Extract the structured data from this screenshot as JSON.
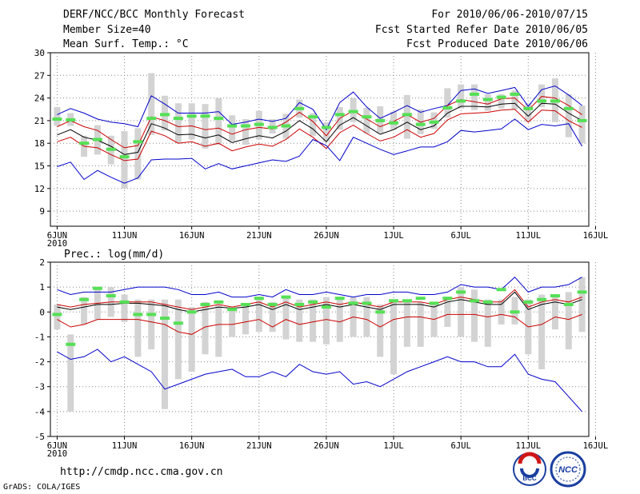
{
  "header": {
    "title": "DERF/NCC/BCC Monthly Forecast",
    "member_size": "Member Size=40",
    "variable": "Mean Surf. Temp.: °C",
    "forecast_period": "For 2010/06/06-2010/07/15",
    "started_refer_date": "Fcst Started Refer Date 2010/06/05",
    "produced_date": "Fcst Produced Date 2010/06/06"
  },
  "footer": {
    "url": "http://cmdp.ncc.cma.gov.cn",
    "credit": "GrADS: COLA/IGES",
    "logo_left_text": "BCC",
    "logo_right_text": "NCC"
  },
  "colors": {
    "max_min": "#0000cc",
    "spread": "#cc0000",
    "mean": "#000000",
    "box": "#d3d3d3",
    "median": "#55e055",
    "grid": "#888888"
  },
  "chart_data": [
    {
      "type": "line",
      "title": "Mean Surf. Temp.: °C",
      "x_tick_labels": [
        "6JUN",
        "11JUN",
        "16JUN",
        "21JUN",
        "26JUN",
        "1JUL",
        "6JUL",
        "11JUL",
        "16JUL"
      ],
      "x_tick_days": [
        1,
        6,
        11,
        16,
        21,
        26,
        31,
        36,
        41
      ],
      "year_label": "2010",
      "ylim": [
        7,
        30
      ],
      "y_ticks": [
        9,
        12,
        15,
        18,
        21,
        24,
        27,
        30
      ],
      "day_range": [
        0.5,
        40.5
      ],
      "days": [
        1,
        2,
        3,
        4,
        5,
        6,
        7,
        8,
        9,
        10,
        11,
        12,
        13,
        14,
        15,
        16,
        17,
        18,
        19,
        20,
        21,
        22,
        23,
        24,
        25,
        26,
        27,
        28,
        29,
        30,
        31,
        32,
        33,
        34,
        35,
        36,
        37,
        38,
        39,
        40
      ],
      "series": [
        {
          "name": "max",
          "values": [
            21.8,
            22.6,
            22.0,
            21.2,
            20.8,
            20.6,
            20.2,
            24.3,
            23.2,
            22.0,
            22.0,
            22.0,
            22.2,
            20.5,
            20.8,
            21.2,
            20.9,
            21.3,
            23.4,
            22.5,
            19.8,
            23.4,
            24.8,
            22.8,
            21.3,
            22.1,
            23.0,
            22.1,
            22.6,
            23.0,
            25.0,
            25.2,
            24.6,
            25.0,
            25.4,
            22.9,
            25.1,
            25.6,
            24.4,
            23.0
          ]
        },
        {
          "name": "spread_upper",
          "values": [
            20.2,
            21.0,
            20.2,
            19.7,
            18.5,
            17.4,
            17.7,
            21.5,
            21.0,
            20.2,
            20.3,
            19.8,
            20.0,
            19.2,
            19.8,
            20.1,
            19.9,
            20.8,
            22.1,
            20.9,
            19.0,
            21.3,
            22.3,
            21.2,
            20.2,
            20.9,
            21.8,
            20.8,
            21.3,
            23.0,
            23.8,
            23.5,
            23.2,
            23.9,
            24.0,
            22.4,
            24.2,
            24.0,
            23.0,
            21.8
          ]
        },
        {
          "name": "mean",
          "values": [
            19.1,
            19.8,
            18.8,
            18.4,
            17.6,
            16.5,
            16.8,
            20.6,
            20.0,
            19.1,
            19.2,
            18.7,
            19.1,
            18.1,
            18.6,
            19.0,
            18.7,
            19.6,
            21.0,
            19.9,
            18.2,
            20.4,
            21.4,
            20.3,
            19.2,
            19.8,
            20.8,
            19.8,
            20.3,
            22.0,
            22.9,
            22.9,
            22.8,
            23.2,
            23.3,
            21.6,
            23.3,
            23.2,
            22.0,
            21.0
          ]
        },
        {
          "name": "spread_lower",
          "values": [
            18.2,
            18.8,
            17.6,
            17.4,
            16.5,
            15.7,
            15.9,
            19.6,
            19.0,
            18.0,
            18.2,
            17.6,
            18.0,
            17.0,
            17.5,
            17.9,
            17.6,
            18.5,
            19.9,
            18.8,
            17.3,
            19.4,
            20.4,
            19.3,
            18.3,
            18.8,
            19.8,
            18.8,
            19.3,
            21.1,
            21.9,
            22.0,
            22.1,
            22.4,
            22.5,
            20.8,
            22.4,
            22.3,
            21.0,
            20.1
          ]
        },
        {
          "name": "min",
          "values": [
            14.9,
            15.5,
            13.2,
            14.4,
            13.5,
            12.7,
            13.4,
            15.8,
            15.9,
            15.9,
            16.0,
            14.6,
            15.3,
            14.6,
            15.0,
            15.4,
            15.8,
            15.6,
            16.3,
            18.5,
            17.7,
            15.7,
            18.8,
            18.0,
            17.2,
            16.5,
            17.0,
            17.5,
            17.5,
            18.2,
            19.7,
            19.5,
            19.7,
            19.9,
            21.2,
            19.8,
            20.5,
            20.3,
            20.6,
            17.6
          ]
        }
      ],
      "box_low": [
        20.3,
        20.3,
        16.2,
        16.5,
        15.2,
        12.0,
        13.2,
        19.1,
        19.7,
        18.0,
        18.5,
        17.3,
        17.8,
        18.3,
        17.8,
        18.5,
        19.3,
        18.6,
        21.4,
        19.0,
        18.2,
        19.8,
        20.8,
        19.3,
        19.4,
        19.8,
        18.6,
        19.2,
        19.9,
        21.4,
        22.6,
        22.4,
        22.3,
        22.6,
        22.5,
        20.8,
        22.8,
        20.8,
        18.8,
        18.0
      ],
      "box_high": [
        22.8,
        22.0,
        19.0,
        20.4,
        19.0,
        19.6,
        20.0,
        27.3,
        24.3,
        23.3,
        23.3,
        23.2,
        24.0,
        21.7,
        21.2,
        22.3,
        21.2,
        21.9,
        23.8,
        22.0,
        20.8,
        22.8,
        24.0,
        22.7,
        22.9,
        22.2,
        24.4,
        22.5,
        22.1,
        25.3,
        25.8,
        25.8,
        24.5,
        24.5,
        25.0,
        23.3,
        25.8,
        26.6,
        24.5,
        23.0
      ],
      "median": [
        21.2,
        21.1,
        18.0,
        18.5,
        17.2,
        16.2,
        18.2,
        21.3,
        21.8,
        21.3,
        21.6,
        21.6,
        21.3,
        20.3,
        20.3,
        20.5,
        20.1,
        20.3,
        22.6,
        21.5,
        20.1,
        21.8,
        22.2,
        21.5,
        21.0,
        20.7,
        21.8,
        20.5,
        20.8,
        22.7,
        23.6,
        24.5,
        23.8,
        24.1,
        24.5,
        22.6,
        23.6,
        23.6,
        22.6,
        21.0
      ]
    },
    {
      "type": "line",
      "title": "Prec.: log(mm/d)",
      "x_tick_labels": [
        "6JUN",
        "11JUN",
        "16JUN",
        "21JUN",
        "26JUN",
        "1JUL",
        "6JUL",
        "11JUL",
        "16JUL"
      ],
      "x_tick_days": [
        1,
        6,
        11,
        16,
        21,
        26,
        31,
        36,
        41
      ],
      "year_label": "2010",
      "ylim": [
        -5,
        2
      ],
      "y_ticks": [
        -5,
        -4,
        -3,
        -2,
        -1,
        0,
        1,
        2
      ],
      "day_range": [
        0.5,
        40.5
      ],
      "days": [
        1,
        2,
        3,
        4,
        5,
        6,
        7,
        8,
        9,
        10,
        11,
        12,
        13,
        14,
        15,
        16,
        17,
        18,
        19,
        20,
        21,
        22,
        23,
        24,
        25,
        26,
        27,
        28,
        29,
        30,
        31,
        32,
        33,
        34,
        35,
        36,
        37,
        38,
        39,
        40
      ],
      "series": [
        {
          "name": "max",
          "values": [
            0.9,
            0.7,
            0.8,
            0.8,
            0.8,
            0.9,
            1.0,
            1.0,
            1.0,
            0.9,
            0.7,
            0.7,
            0.8,
            0.6,
            0.6,
            0.7,
            0.6,
            0.9,
            0.7,
            0.7,
            0.8,
            0.7,
            0.6,
            0.7,
            0.7,
            0.8,
            0.8,
            0.7,
            0.7,
            0.8,
            1.1,
            1.0,
            1.0,
            0.9,
            1.4,
            0.8,
            1.0,
            1.0,
            1.1,
            1.4
          ]
        },
        {
          "name": "spread_upper",
          "values": [
            0.3,
            0.2,
            0.3,
            0.35,
            0.4,
            0.4,
            0.4,
            0.4,
            0.3,
            0.2,
            0.1,
            0.2,
            0.3,
            0.2,
            0.3,
            0.4,
            0.2,
            0.4,
            0.2,
            0.3,
            0.4,
            0.3,
            0.4,
            0.3,
            0.2,
            0.4,
            0.4,
            0.4,
            0.3,
            0.5,
            0.6,
            0.5,
            0.4,
            0.4,
            0.9,
            0.2,
            0.4,
            0.5,
            0.4,
            0.6
          ]
        },
        {
          "name": "mean",
          "values": [
            0.2,
            0.1,
            0.2,
            0.3,
            0.3,
            0.35,
            0.35,
            0.3,
            0.25,
            0.1,
            0.0,
            0.1,
            0.2,
            0.15,
            0.2,
            0.3,
            0.1,
            0.3,
            0.1,
            0.2,
            0.3,
            0.2,
            0.3,
            0.2,
            0.1,
            0.3,
            0.3,
            0.3,
            0.2,
            0.4,
            0.5,
            0.4,
            0.3,
            0.3,
            0.8,
            0.1,
            0.3,
            0.4,
            0.3,
            0.5
          ]
        },
        {
          "name": "spread_lower",
          "values": [
            -0.3,
            -0.6,
            -0.5,
            -0.3,
            -0.3,
            -0.3,
            -0.3,
            -0.4,
            -0.5,
            -0.8,
            -0.9,
            -0.6,
            -0.5,
            -0.5,
            -0.4,
            -0.3,
            -0.6,
            -0.3,
            -0.5,
            -0.4,
            -0.3,
            -0.4,
            -0.2,
            -0.3,
            -0.6,
            -0.3,
            -0.2,
            -0.2,
            -0.3,
            -0.1,
            -0.1,
            -0.1,
            -0.2,
            -0.1,
            -0.2,
            -0.6,
            -0.5,
            -0.2,
            -0.3,
            -0.1
          ]
        },
        {
          "name": "min",
          "values": [
            -1.6,
            -1.9,
            -1.8,
            -1.5,
            -2.0,
            -1.8,
            -2.1,
            -2.4,
            -3.1,
            -2.9,
            -2.7,
            -2.5,
            -2.4,
            -2.3,
            -2.6,
            -2.6,
            -2.4,
            -2.6,
            -2.1,
            -2.4,
            -2.5,
            -2.4,
            -2.9,
            -2.8,
            -3.0,
            -2.7,
            -2.4,
            -2.2,
            -2.0,
            -1.8,
            -2.0,
            -2.0,
            -2.2,
            -2.2,
            -1.7,
            -2.5,
            -2.7,
            -2.8,
            -3.4,
            -4.0
          ]
        },
        {
          "name": "medianline",
          "values": [
            0.0,
            0.0,
            0.0,
            0.0,
            0.0,
            0.0,
            0.0,
            0.0,
            0.0,
            0.0,
            0.0,
            0.0,
            0.0,
            0.0,
            0.0,
            0.0,
            0.0,
            0.0,
            0.0,
            0.0,
            0.0,
            0.0,
            0.0,
            0.0,
            0.0,
            0.0,
            0.0,
            0.0,
            0.0,
            0.0,
            0.0,
            0.0,
            0.0,
            0.0,
            0.0,
            0.0,
            0.0,
            0.0,
            0.0,
            0.0
          ]
        }
      ],
      "box_low": [
        -0.7,
        -4.0,
        -0.5,
        -0.3,
        -0.2,
        -0.4,
        -1.8,
        -1.5,
        -3.9,
        -2.7,
        -2.4,
        -1.7,
        -1.8,
        -1.0,
        -0.9,
        -0.8,
        -0.8,
        -1.1,
        -1.2,
        -1.2,
        -1.3,
        -1.2,
        -1.0,
        -1.0,
        -1.8,
        -2.5,
        -1.4,
        -1.4,
        -1.0,
        -0.6,
        -1.0,
        -1.2,
        -1.4,
        -0.5,
        -0.5,
        -1.7,
        -2.3,
        -0.7,
        -1.5,
        -0.8
      ],
      "box_high": [
        0.3,
        -0.9,
        0.6,
        0.9,
        1.0,
        0.7,
        0.5,
        0.5,
        0.5,
        0.5,
        0.2,
        0.4,
        0.3,
        0.2,
        0.3,
        0.6,
        0.4,
        0.6,
        0.5,
        0.5,
        0.6,
        0.5,
        0.6,
        0.6,
        0.3,
        0.5,
        0.5,
        0.4,
        0.4,
        0.6,
        1.0,
        0.9,
        0.5,
        0.5,
        0.6,
        0.5,
        0.7,
        0.6,
        0.8,
        1.4
      ],
      "median": [
        -0.1,
        -1.3,
        0.5,
        0.95,
        0.65,
        0.4,
        -0.1,
        -0.1,
        -0.25,
        -0.45,
        0.0,
        0.3,
        0.4,
        0.1,
        0.3,
        0.55,
        0.3,
        0.6,
        0.3,
        0.4,
        0.2,
        0.55,
        0.35,
        0.35,
        0.0,
        0.45,
        0.45,
        0.55,
        0.35,
        0.55,
        0.8,
        0.45,
        0.4,
        0.9,
        0.0,
        0.4,
        0.5,
        0.65,
        0.3,
        0.8
      ]
    }
  ]
}
